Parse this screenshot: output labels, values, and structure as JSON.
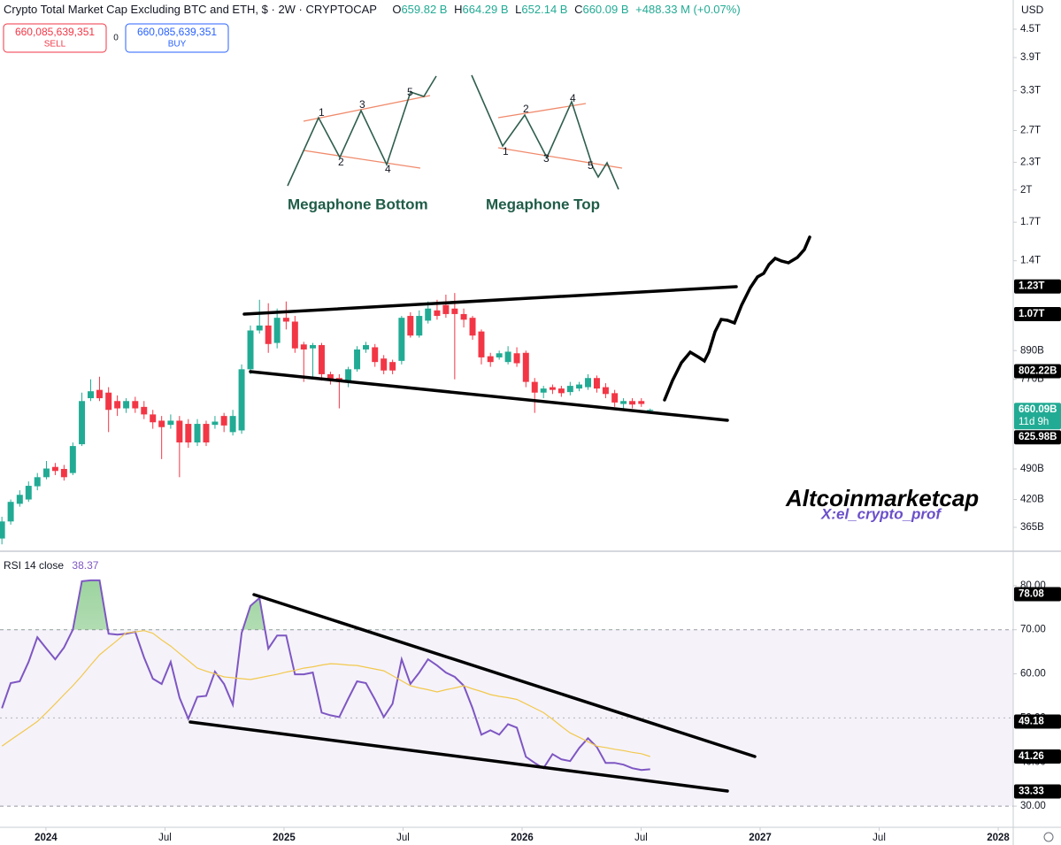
{
  "header": {
    "title": "Crypto Total Market Cap Excluding BTC and ETH, $ · 2W · CRYPTOCAP",
    "ohlc": [
      {
        "label": "O",
        "value": "659.82 B"
      },
      {
        "label": "H",
        "value": "664.29 B"
      },
      {
        "label": "L",
        "value": "652.14 B"
      },
      {
        "label": "C",
        "value": "660.09 B"
      }
    ],
    "change": "+488.33 M (+0.07%)",
    "currency": "USD"
  },
  "order_panel": {
    "sell_price": "660,085,639,351",
    "sell_label": "SELL",
    "spread": "0",
    "buy_price": "660,085,639,351",
    "buy_label": "BUY"
  },
  "inset": {
    "bottom": {
      "title": "Megaphone Bottom",
      "points": [
        "1",
        "2",
        "3",
        "4",
        "5"
      ]
    },
    "top": {
      "title": "Megaphone Top",
      "points": [
        "1",
        "2",
        "3",
        "4",
        "5"
      ]
    }
  },
  "watermark": {
    "brand": "Altcoinmarketcap",
    "handle": "X:el_crypto_prof"
  },
  "chart_data": [
    {
      "type": "candlestick",
      "log": true,
      "grid": false,
      "up_color": "#22ab94",
      "down_color": "#f23645",
      "xlim": [
        2023.807,
        2028.063
      ],
      "ylim": [
        325,
        5214
      ],
      "x": [
        2023.815,
        2023.852,
        2023.89,
        2023.927,
        2023.964,
        2024.002,
        2024.039,
        2024.076,
        2024.113,
        2024.151,
        2024.188,
        2024.225,
        2024.263,
        2024.3,
        2024.337,
        2024.375,
        2024.412,
        2024.449,
        2024.486,
        2024.524,
        2024.561,
        2024.598,
        2024.636,
        2024.673,
        2024.71,
        2024.748,
        2024.785,
        2024.822,
        2024.859,
        2024.897,
        2024.934,
        2024.971,
        2025.009,
        2025.046,
        2025.083,
        2025.121,
        2025.158,
        2025.195,
        2025.232,
        2025.27,
        2025.307,
        2025.344,
        2025.382,
        2025.419,
        2025.456,
        2025.494,
        2025.531,
        2025.568,
        2025.605,
        2025.643,
        2025.68,
        2025.717,
        2025.755,
        2025.792,
        2025.829,
        2025.867,
        2025.904,
        2025.941,
        2025.978,
        2026.016,
        2026.053,
        2026.09,
        2026.128,
        2026.165,
        2026.202,
        2026.24,
        2026.277,
        2026.314,
        2026.351,
        2026.389,
        2026.426,
        2026.463,
        2026.501,
        2026.538
      ],
      "open": [
        345,
        376,
        411,
        420,
        449,
        470,
        495,
        490,
        480,
        555,
        700,
        730,
        720,
        690,
        665,
        690,
        670,
        645,
        625,
        612,
        625,
        615,
        560,
        615,
        612,
        640,
        590,
        595,
        810,
        985,
        1010,
        925,
        1050,
        1030,
        918,
        900,
        915,
        790,
        775,
        760,
        810,
        895,
        905,
        855,
        840,
        845,
        1060,
        960,
        1035,
        1090,
        1120,
        1100,
        1070,
        1050,
        980,
        865,
        860,
        840,
        878,
        880,
        760,
        720,
        740,
        735,
        722,
        735,
        740,
        775,
        740,
        718,
        680,
        690,
        690,
        659.82
      ],
      "high": [
        385,
        420,
        440,
        460,
        480,
        510,
        505,
        500,
        560,
        720,
        770,
        780,
        740,
        710,
        700,
        705,
        690,
        660,
        640,
        645,
        640,
        630,
        630,
        625,
        640,
        650,
        660,
        830,
        1010,
        1150,
        1130,
        1100,
        1140,
        1060,
        930,
        925,
        925,
        800,
        790,
        820,
        910,
        930,
        920,
        870,
        850,
        1060,
        1080,
        1090,
        1140,
        1150,
        1180,
        1190,
        1100,
        1060,
        990,
        880,
        890,
        910,
        905,
        890,
        775,
        745,
        750,
        745,
        760,
        760,
        790,
        785,
        755,
        730,
        700,
        700,
        700,
        664.29
      ],
      "low": [
        335,
        370,
        405,
        415,
        440,
        465,
        475,
        462,
        475,
        550,
        690,
        690,
        590,
        640,
        650,
        650,
        630,
        600,
        515,
        600,
        470,
        545,
        550,
        550,
        600,
        590,
        580,
        585,
        790,
        970,
        880,
        900,
        990,
        880,
        760,
        780,
        765,
        750,
        665,
        740,
        800,
        880,
        820,
        790,
        790,
        830,
        950,
        950,
        1020,
        1040,
        1050,
        770,
        1000,
        940,
        830,
        820,
        850,
        830,
        820,
        740,
        650,
        700,
        715,
        705,
        710,
        725,
        730,
        720,
        700,
        670,
        660,
        665,
        670,
        652.14
      ],
      "close": [
        376,
        415,
        430,
        450,
        470,
        491,
        485,
        470,
        550,
        690,
        725,
        700,
        660,
        665,
        690,
        665,
        645,
        620,
        605,
        625,
        560,
        560,
        615,
        560,
        622,
        610,
        640,
        810,
        985,
        1010,
        920,
        1050,
        1030,
        900,
        895,
        915,
        790,
        770,
        760,
        810,
        895,
        915,
        840,
        805,
        805,
        1050,
        960,
        1060,
        1100,
        1060,
        1070,
        1070,
        1040,
        960,
        860,
        840,
        878,
        885,
        835,
        760,
        720,
        735,
        730,
        718,
        745,
        750,
        775,
        735,
        715,
        685,
        690,
        678,
        680,
        660.09
      ],
      "yticks": [
        {
          "value": 4500,
          "label": "4.5T"
        },
        {
          "value": 3900,
          "label": "3.9T"
        },
        {
          "value": 3300,
          "label": "3.3T"
        },
        {
          "value": 2700,
          "label": "2.7T"
        },
        {
          "value": 2300,
          "label": "2.3T"
        },
        {
          "value": 2000,
          "label": "2T"
        },
        {
          "value": 1700,
          "label": "1.7T"
        },
        {
          "value": 1400,
          "label": "1.4T"
        },
        {
          "value": 890,
          "label": "890B"
        },
        {
          "value": 770,
          "label": "770B"
        },
        {
          "value": 490,
          "label": "490B"
        },
        {
          "value": 420,
          "label": "420B"
        },
        {
          "value": 365,
          "label": "365B"
        }
      ],
      "price_labels": [
        {
          "value": 1230,
          "label": "1.23T",
          "color": "#000000"
        },
        {
          "value": 1070,
          "label": "1.07T",
          "color": "#000000"
        },
        {
          "value": 802.22,
          "label": "802.22B",
          "color": "#000000"
        },
        {
          "value": 660.09,
          "label": "660.09B",
          "sublabel": "11d 9h",
          "color": "#22ab94"
        },
        {
          "value": 625.98,
          "label": "625.98B",
          "color": "#000000"
        }
      ]
    },
    {
      "type": "line",
      "title": "RSI 14 close",
      "xlim": [
        2023.807,
        2028.063
      ],
      "ylim": [
        25.2,
        87.6
      ],
      "x": [
        2023.815,
        2023.852,
        2023.89,
        2023.927,
        2023.964,
        2024.002,
        2024.039,
        2024.076,
        2024.113,
        2024.151,
        2024.188,
        2024.225,
        2024.263,
        2024.3,
        2024.337,
        2024.375,
        2024.412,
        2024.449,
        2024.486,
        2024.524,
        2024.561,
        2024.598,
        2024.636,
        2024.673,
        2024.71,
        2024.748,
        2024.785,
        2024.822,
        2024.859,
        2024.897,
        2024.934,
        2024.971,
        2025.009,
        2025.046,
        2025.083,
        2025.121,
        2025.158,
        2025.195,
        2025.232,
        2025.27,
        2025.307,
        2025.344,
        2025.382,
        2025.419,
        2025.456,
        2025.494,
        2025.531,
        2025.568,
        2025.605,
        2025.643,
        2025.68,
        2025.717,
        2025.755,
        2025.792,
        2025.829,
        2025.867,
        2025.904,
        2025.941,
        2025.978,
        2026.016,
        2026.053,
        2026.09,
        2026.128,
        2026.165,
        2026.202,
        2026.24,
        2026.277,
        2026.314,
        2026.351,
        2026.389,
        2026.426,
        2026.463,
        2026.501,
        2026.538
      ],
      "series": [
        {
          "name": "RSI",
          "color": "#7e57c2",
          "value_label": "38.37",
          "values": [
            52.2,
            57.9,
            58.3,
            62.7,
            68.3,
            65.7,
            63.3,
            66,
            70,
            81,
            81.2,
            81.2,
            69.1,
            68.9,
            69.1,
            69.5,
            63.7,
            58.9,
            57.7,
            62.7,
            54.6,
            49.8,
            54.8,
            55,
            60.5,
            57.7,
            53,
            69.3,
            75.4,
            77.2,
            65.7,
            68.7,
            68.7,
            59.9,
            59.9,
            60.3,
            51.2,
            50.6,
            50.2,
            54.4,
            58.3,
            57.9,
            54.2,
            50.2,
            53.2,
            63.3,
            57.7,
            60.3,
            63.3,
            61.9,
            60.3,
            59.3,
            57.3,
            52.2,
            46.2,
            47.2,
            46.2,
            48.6,
            47.8,
            41.2,
            39.8,
            38.6,
            41.8,
            40.6,
            40.2,
            43.2,
            45.4,
            43.4,
            39.8,
            39.8,
            39.4,
            38.6,
            38.2,
            38.37
          ]
        },
        {
          "color": "#f2c94c",
          "values": [
            43.6,
            45.0,
            46.4,
            47.8,
            49.2,
            51.2,
            53.2,
            55.3,
            57.3,
            59.6,
            62.0,
            64.3,
            66.0,
            67.6,
            69.3,
            69.5,
            69.8,
            69.2,
            67.7,
            66.3,
            64.6,
            63.0,
            61.3,
            60.6,
            60.0,
            59.3,
            59.1,
            58.9,
            58.7,
            59.1,
            59.5,
            59.9,
            60.4,
            60.8,
            61.3,
            61.6,
            62.0,
            62.3,
            62.2,
            62.0,
            61.9,
            61.5,
            61.1,
            60.7,
            59.6,
            58.4,
            57.3,
            56.8,
            56.4,
            55.9,
            56.4,
            56.8,
            57.3,
            56.6,
            56.0,
            55.3,
            54.9,
            54.6,
            54.2,
            53.2,
            52.2,
            51.2,
            49.7,
            48.1,
            46.6,
            45.6,
            44.6,
            43.6,
            43.3,
            42.9,
            42.6,
            42.2,
            41.9,
            41.26
          ]
        }
      ],
      "band": [
        30,
        70
      ],
      "midline": 50,
      "band_color": "#7e57c2",
      "yticks": [
        {
          "value": 80,
          "label": "80.00"
        },
        {
          "value": 70,
          "label": "70.00"
        },
        {
          "value": 60,
          "label": "60.00"
        },
        {
          "value": 50,
          "label": "50.00"
        },
        {
          "value": 40,
          "label": "40.00"
        },
        {
          "value": 30,
          "label": "30.00"
        }
      ],
      "price_labels": [
        {
          "value": 78.08,
          "color": "#000000"
        },
        {
          "value": 49.18,
          "color": "#000000"
        },
        {
          "value": 41.26,
          "color": "#000000"
        },
        {
          "value": 33.33,
          "color": "#000000"
        }
      ],
      "xticks": [
        {
          "value": 2024,
          "label": "2024"
        },
        {
          "value": 2024.5,
          "label": "Jul"
        },
        {
          "value": 2025,
          "label": "2025"
        },
        {
          "value": 2025.5,
          "label": "Jul"
        },
        {
          "value": 2026,
          "label": "2026"
        },
        {
          "value": 2026.5,
          "label": "Jul"
        },
        {
          "value": 2027,
          "label": "2027"
        },
        {
          "value": 2027.5,
          "label": "Jul"
        },
        {
          "value": 2028,
          "label": "2028"
        }
      ]
    }
  ]
}
